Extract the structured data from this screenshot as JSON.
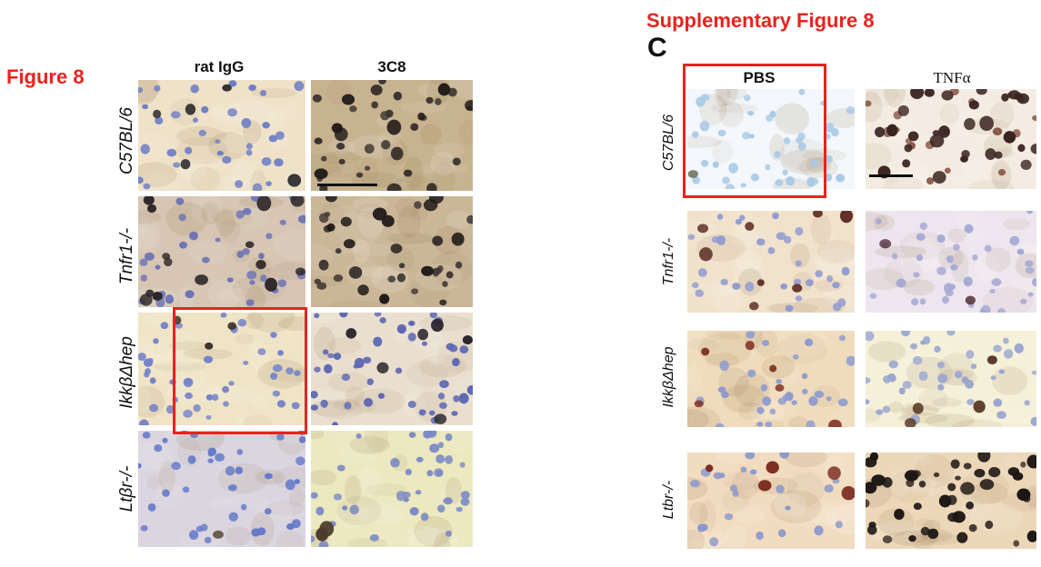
{
  "left_figure": {
    "title": "Figure 8",
    "columns": [
      "rat IgG",
      "3C8"
    ],
    "rows": [
      "C57BL/6",
      "Tnfr1-/-",
      "IkkβΔhep",
      "Ltβr-/-"
    ],
    "tiles": [
      {
        "bg": "#efe2c8",
        "nucleus": "#6f7fc4",
        "dark": "#2e2c30",
        "n": 34,
        "dk": 5,
        "seed": 11
      },
      {
        "bg": "#c7b390",
        "nucleus": "#3b3532",
        "dark": "#211c1a",
        "n": 22,
        "dk": 16,
        "seed": 12
      },
      {
        "bg": "#d6c6b3",
        "nucleus": "#6d73b5",
        "dark": "#2a2427",
        "n": 34,
        "dk": 14,
        "seed": 13
      },
      {
        "bg": "#cbb798",
        "nucleus": "#3f3835",
        "dark": "#1e1a18",
        "n": 20,
        "dk": 16,
        "seed": 14
      },
      {
        "bg": "#efe4c6",
        "nucleus": "#7683c8",
        "dark": "#3b2e2a",
        "n": 40,
        "dk": 3,
        "seed": 15
      },
      {
        "bg": "#eadfce",
        "nucleus": "#5d67b3",
        "dark": "#2c2830",
        "n": 44,
        "dk": 6,
        "seed": 16
      },
      {
        "bg": "#dad5de",
        "nucleus": "#6479c8",
        "dark": "#5a4a3a",
        "n": 38,
        "dk": 1,
        "seed": 17
      },
      {
        "bg": "#ece8c0",
        "nucleus": "#7b8ac4",
        "dark": "#4a3b2a",
        "n": 38,
        "dk": 2,
        "seed": 18
      }
    ]
  },
  "right_figure": {
    "title": "Supplementary Figure 8",
    "panel_letter": "C",
    "columns": [
      "PBS",
      "TNFα"
    ],
    "rows": [
      "C57BL/6",
      "Tnfr1-/-",
      "IkkβΔhep",
      "Ltbr-/-"
    ],
    "tiles": [
      {
        "bg": "#f3f7fb",
        "nucleus": "#a9c9e4",
        "dark": "#6a6a5a",
        "n": 40,
        "dk": 1,
        "seed": 21
      },
      {
        "bg": "#f4ece2",
        "nucleus": "#8a5a4a",
        "dark": "#3a2420",
        "n": 18,
        "dk": 30,
        "seed": 22
      },
      {
        "bg": "#f1e2cc",
        "nucleus": "#8f9ad0",
        "dark": "#5a2a22",
        "n": 30,
        "dk": 8,
        "seed": 23
      },
      {
        "bg": "#eee6ee",
        "nucleus": "#a5a9d2",
        "dark": "#5a3540",
        "n": 38,
        "dk": 2,
        "seed": 24
      },
      {
        "bg": "#f0dcbc",
        "nucleus": "#8e9ad0",
        "dark": "#7a2a1e",
        "n": 30,
        "dk": 6,
        "seed": 25
      },
      {
        "bg": "#f5f0d8",
        "nucleus": "#9aa6cf",
        "dark": "#5a3b2a",
        "n": 40,
        "dk": 4,
        "seed": 26
      },
      {
        "bg": "#f2dcc0",
        "nucleus": "#8c98cc",
        "dark": "#7a2a1e",
        "n": 22,
        "dk": 5,
        "seed": 27
      },
      {
        "bg": "#ecd7b8",
        "nucleus": "#3a2e28",
        "dark": "#1c1614",
        "n": 10,
        "dk": 34,
        "seed": 28
      }
    ]
  }
}
